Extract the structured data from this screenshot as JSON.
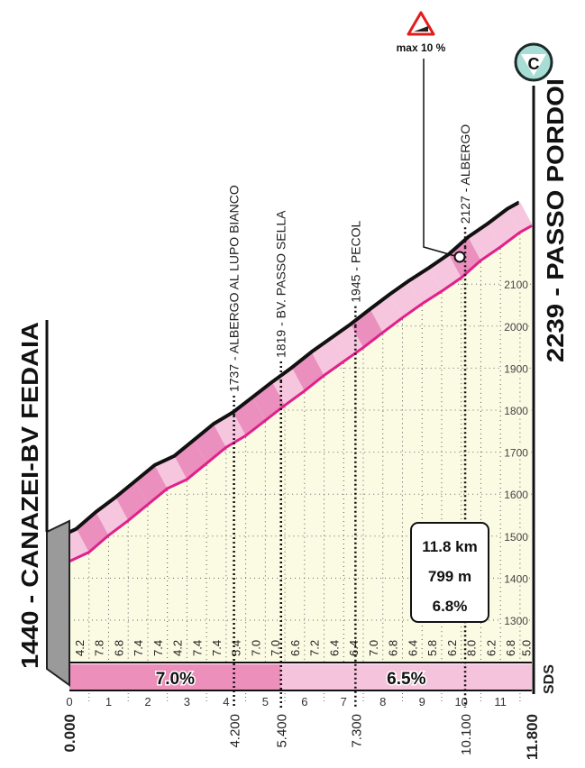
{
  "chart_data": {
    "type": "area",
    "title": "",
    "start": {
      "label": "1440 - CANAZEI-BV FEDAIA",
      "altitude": 1440
    },
    "finish": {
      "label": "2239 - PASSO PORDOI",
      "altitude": 2239,
      "category": "C"
    },
    "x_km_ticks": [
      "0",
      "1",
      "2",
      "3",
      "4",
      "5",
      "6",
      "7",
      "8",
      "9",
      "10",
      "11"
    ],
    "xlim": [
      0,
      11.8
    ],
    "ylim": [
      1300,
      2239
    ],
    "y_ticks": [
      "1300",
      "1400",
      "1500",
      "1600",
      "1700",
      "1800",
      "1900",
      "2000",
      "2100"
    ],
    "segment_length_km": 0.5,
    "segment_gradients": [
      "4.2",
      "7.8",
      "6.8",
      "7.4",
      "7.4",
      "4.2",
      "7.4",
      "7.4",
      "5.4",
      "7.0",
      "7.0",
      "6.6",
      "7.2",
      "6.4",
      "6.4",
      "7.0",
      "6.8",
      "6.4",
      "5.8",
      "6.2",
      "8.0",
      "6.2",
      "6.8",
      "5.0"
    ],
    "sector_gradients": [
      {
        "from": 0,
        "to": 5.4,
        "label": "7.0%",
        "color": "#ec8fbb"
      },
      {
        "from": 5.4,
        "to": 11.8,
        "label": "6.5%",
        "color": "#f6c3dc"
      }
    ],
    "distance_labels": [
      {
        "km": 0,
        "label": "0.000"
      },
      {
        "km": 4.2,
        "label": "4.200"
      },
      {
        "km": 5.4,
        "label": "5.400"
      },
      {
        "km": 7.3,
        "label": "7.300"
      },
      {
        "km": 10.1,
        "label": "10.100"
      },
      {
        "km": 11.8,
        "label": "11.800"
      }
    ],
    "waypoints": [
      {
        "km": 4.2,
        "label": "1737 - ALBERGO AL LUPO BIANCO"
      },
      {
        "km": 5.4,
        "label": "1819 - BV. PASSO SELLA"
      },
      {
        "km": 7.3,
        "label": "1945 - PECOL"
      },
      {
        "km": 10.1,
        "label": "2127 - ALBERGO"
      }
    ],
    "max_gradient": {
      "label": "max 10 %",
      "km": 9.9
    },
    "summary": {
      "distance": "11.8 km",
      "gain": "799 m",
      "average": "6.8%"
    },
    "logo": "SDS",
    "colors": {
      "line": "#e0218a",
      "ribbon_dark": "#eb8fbf",
      "ribbon_light": "#f6c6de",
      "area": "#fbfbe4",
      "badge": "#a8ddd6"
    }
  }
}
